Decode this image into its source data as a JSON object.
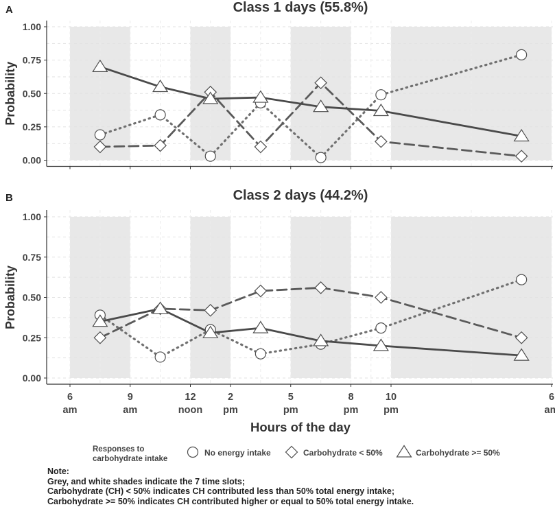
{
  "chart_data": [
    {
      "type": "line",
      "panel_label": "A",
      "title": "Class 1 days (55.8%)",
      "ylabel": "Probability",
      "ylim": [
        0,
        1
      ],
      "yticks": [
        "0.00",
        "0.25",
        "0.50",
        "0.75",
        "1.00"
      ],
      "x_unit": "hour of day (24h)",
      "xlim": [
        6,
        30
      ],
      "grey_bands": [
        [
          6,
          9
        ],
        [
          12,
          14
        ],
        [
          17,
          20
        ],
        [
          22,
          30
        ]
      ],
      "series": [
        {
          "name": "No energy intake",
          "marker": "circle",
          "line": "dotted",
          "color": "#707070",
          "x": [
            7.5,
            10.5,
            13,
            15.5,
            18.5,
            21.5,
            28.5
          ],
          "values": [
            0.19,
            0.34,
            0.03,
            0.43,
            0.02,
            0.49,
            0.79
          ]
        },
        {
          "name": "Carbohydrate < 50%",
          "marker": "diamond",
          "line": "dashed",
          "color": "#5a5a5a",
          "x": [
            7.5,
            10.5,
            13,
            15.5,
            18.5,
            21.5,
            28.5
          ],
          "values": [
            0.1,
            0.11,
            0.51,
            0.1,
            0.58,
            0.14,
            0.03
          ]
        },
        {
          "name": "Carbohydrate >= 50%",
          "marker": "triangle",
          "line": "solid",
          "color": "#4a4a4a",
          "x": [
            7.5,
            10.5,
            13,
            15.5,
            18.5,
            21.5,
            28.5
          ],
          "values": [
            0.7,
            0.55,
            0.46,
            0.47,
            0.4,
            0.37,
            0.18
          ]
        }
      ]
    },
    {
      "type": "line",
      "panel_label": "B",
      "title": "Class 2 days (44.2%)",
      "ylabel": "Probability",
      "xlabel": "Hours of the day",
      "ylim": [
        0,
        1
      ],
      "yticks": [
        "0.00",
        "0.25",
        "0.50",
        "0.75",
        "1.00"
      ],
      "x_unit": "hour of day (24h)",
      "xlim": [
        6,
        30
      ],
      "xticks": [
        {
          "x": 6,
          "top": "6",
          "bottom": "am"
        },
        {
          "x": 9,
          "top": "9",
          "bottom": "am"
        },
        {
          "x": 12,
          "top": "12",
          "bottom": "noon"
        },
        {
          "x": 14,
          "top": "2",
          "bottom": "pm"
        },
        {
          "x": 17,
          "top": "5",
          "bottom": "pm"
        },
        {
          "x": 20,
          "top": "8",
          "bottom": "pm"
        },
        {
          "x": 22,
          "top": "10",
          "bottom": "pm"
        },
        {
          "x": 30,
          "top": "6",
          "bottom": "am"
        }
      ],
      "grey_bands": [
        [
          6,
          9
        ],
        [
          12,
          14
        ],
        [
          17,
          20
        ],
        [
          22,
          30
        ]
      ],
      "series": [
        {
          "name": "No energy intake",
          "marker": "circle",
          "line": "dotted",
          "color": "#707070",
          "x": [
            7.5,
            10.5,
            13,
            15.5,
            18.5,
            21.5,
            28.5
          ],
          "values": [
            0.39,
            0.13,
            0.3,
            0.15,
            0.21,
            0.31,
            0.61
          ]
        },
        {
          "name": "Carbohydrate < 50%",
          "marker": "diamond",
          "line": "dashed",
          "color": "#5a5a5a",
          "x": [
            7.5,
            10.5,
            13,
            15.5,
            18.5,
            21.5,
            28.5
          ],
          "values": [
            0.25,
            0.43,
            0.42,
            0.54,
            0.56,
            0.5,
            0.25
          ]
        },
        {
          "name": "Carbohydrate >= 50%",
          "marker": "triangle",
          "line": "solid",
          "color": "#4a4a4a",
          "x": [
            7.5,
            10.5,
            13,
            15.5,
            18.5,
            21.5,
            28.5
          ],
          "values": [
            0.35,
            0.43,
            0.28,
            0.31,
            0.23,
            0.2,
            0.14
          ]
        }
      ]
    }
  ],
  "legend": {
    "title_line1": "Responses to",
    "title_line2": "carbohydrate intake",
    "placement": "bottom",
    "items": [
      "No energy intake",
      "Carbohydrate < 50%",
      "Carbohydrate >= 50%"
    ]
  },
  "note": {
    "heading": "Note:",
    "lines": [
      "Grey, and white shades indicate the 7 time slots;",
      "Carbohydrate (CH) < 50% indicates CH contributed less than 50% total energy intake;",
      "Carbohydrate >= 50% indicates CH contributed higher or equal to 50% total energy intake."
    ]
  }
}
